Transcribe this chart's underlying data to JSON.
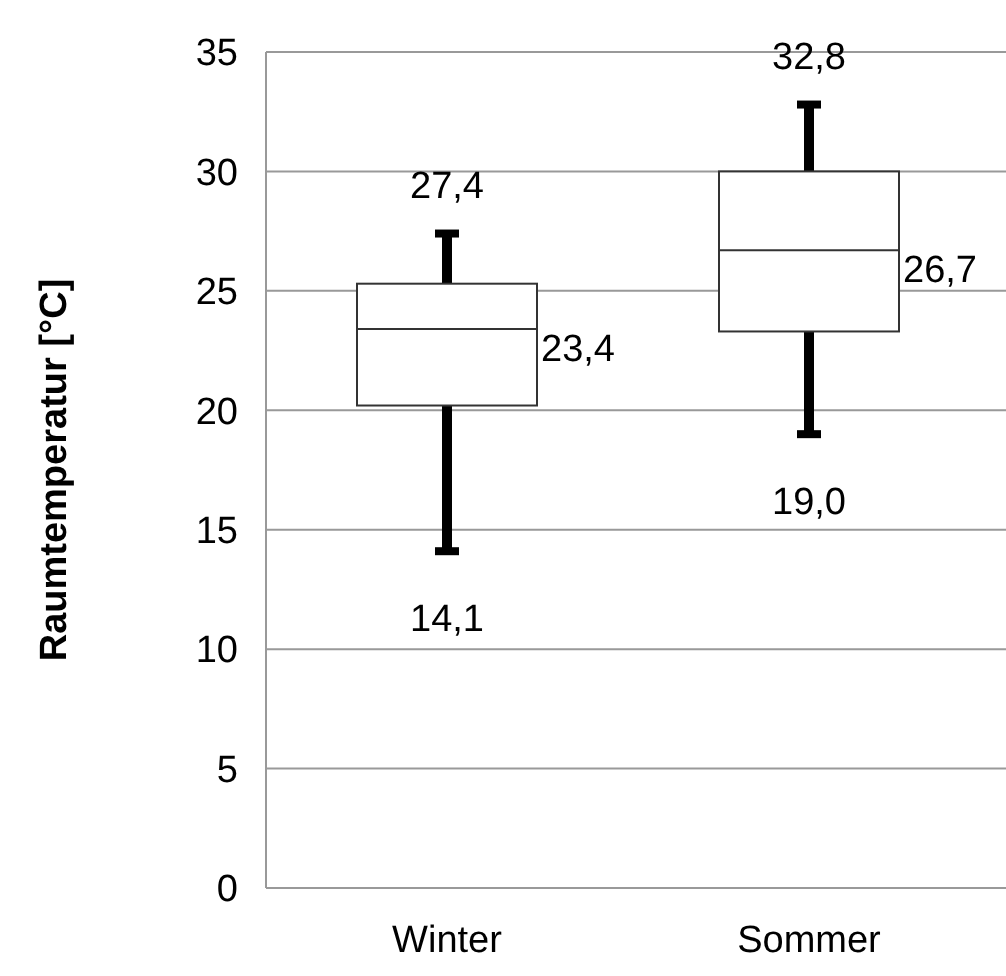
{
  "chart_data": {
    "type": "box",
    "ylabel": "Raumtemperatur [°C]",
    "categories": [
      "Winter",
      "Sommer"
    ],
    "boxes": [
      {
        "low": 14.1,
        "q1": 20.2,
        "median": 23.4,
        "q3": 25.3,
        "high": 27.4
      },
      {
        "low": 19.0,
        "q1": 23.3,
        "median": 26.7,
        "q3": 30.0,
        "high": 32.8
      }
    ],
    "annotations": [
      {
        "text": "27,4",
        "x": "Winter",
        "y": 27.4
      },
      {
        "text": "23,4",
        "x": "Winter",
        "y": 23.4
      },
      {
        "text": "14,1",
        "x": "Winter",
        "y": 14.1
      },
      {
        "text": "32,8",
        "x": "Sommer",
        "y": 32.8
      },
      {
        "text": "26,7",
        "x": "Sommer",
        "y": 26.7
      },
      {
        "text": "19,0",
        "x": "Sommer",
        "y": 19.0
      }
    ],
    "ylim": [
      0,
      35
    ],
    "yticks": [
      0,
      5,
      10,
      15,
      20,
      25,
      30,
      35
    ],
    "grid": "y"
  }
}
